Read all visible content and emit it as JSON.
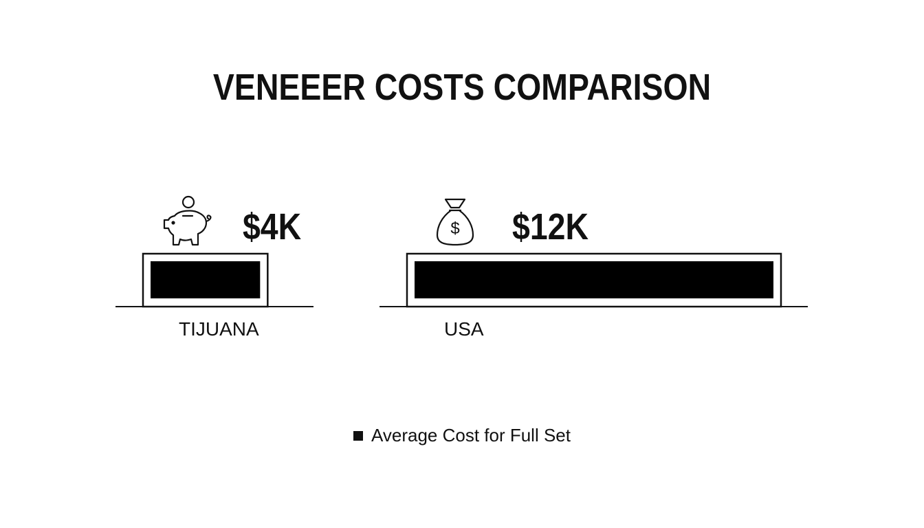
{
  "chart_data": {
    "type": "bar",
    "orientation": "horizontal",
    "title": "VENEEER COSTS COMPARISON",
    "categories": [
      "TIJUANA",
      "USA"
    ],
    "series": [
      {
        "name": "Average Cost for Full Set",
        "values": [
          4000,
          12000
        ],
        "value_labels": [
          "$4K",
          "$12K"
        ]
      }
    ],
    "icons": [
      "piggy-bank-icon",
      "money-bag-icon"
    ],
    "bar_color": "#000000",
    "frame_color": "#111111",
    "legend_placement": "bottom-center",
    "grid": false
  }
}
